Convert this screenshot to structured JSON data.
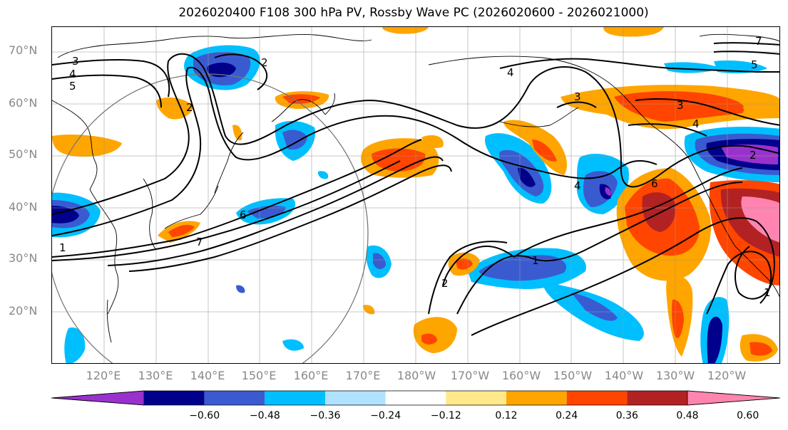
{
  "title": "2026020400 F108 300 hPa PV, Rossby Wave PC (2026020600 - 2026021000)",
  "lat_labels": [
    "70°N",
    "60°N",
    "50°N",
    "40°N",
    "30°N",
    "20°N"
  ],
  "lon_labels": [
    "120°E",
    "130°E",
    "140°E",
    "150°E",
    "160°E",
    "170°E",
    "180°W",
    "170°W",
    "160°W",
    "150°W",
    "140°W",
    "130°W",
    "120°W"
  ],
  "colorbar": {
    "colors": [
      "#9932cc",
      "#00008b",
      "#3a5bd0",
      "#00bfff",
      "#b0e2ff",
      "#ffffff",
      "#ffe98a",
      "#ffa500",
      "#ff4500",
      "#b22222",
      "#ff85b0"
    ],
    "ticks": [
      "−0.60",
      "−0.48",
      "−0.36",
      "−0.24",
      "−0.12",
      "0.12",
      "0.24",
      "0.36",
      "0.48",
      "0.60"
    ]
  },
  "map_data": {
    "projection": "equirectangular",
    "lon_range": [
      110,
      248
    ],
    "lat_range": [
      10,
      75
    ],
    "field": "Rossby Wave PC",
    "contour_labels": [
      "4",
      "5",
      "3",
      "2",
      "6",
      "7",
      "1",
      "4",
      "3",
      "4",
      "2",
      "1",
      "6",
      "5",
      "7",
      "3",
      "4",
      "2",
      "1",
      "2"
    ],
    "circle_center": [
      139,
      40
    ]
  }
}
